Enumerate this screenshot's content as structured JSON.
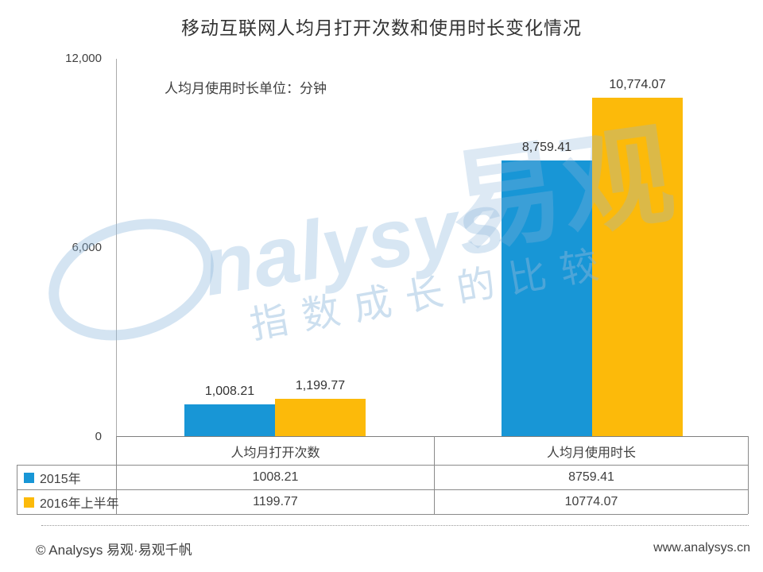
{
  "title": "移动互联网人均月打开次数和使用时长变化情况",
  "chart_data": {
    "type": "bar",
    "title": "移动互联网人均月打开次数和使用时长变化情况",
    "unit_note": "人均月使用时长单位：分钟",
    "categories": [
      "人均月打开次数",
      "人均月使用时长"
    ],
    "series": [
      {
        "name": "2015年",
        "color": "#1896D6",
        "values": [
          1008.21,
          8759.41
        ],
        "labels": [
          "1,008.21",
          "8,759.41"
        ]
      },
      {
        "name": "2016年上半年",
        "color": "#FCBA0A",
        "values": [
          1199.77,
          10774.07
        ],
        "labels": [
          "1,199.77",
          "10,774.07"
        ]
      }
    ],
    "ylim": [
      0,
      12000
    ],
    "yticks": [
      "12,000",
      "6,000",
      "0"
    ],
    "grid": false,
    "legend_position": "table-left-column"
  },
  "table": {
    "headers": [
      "人均月打开次数",
      "人均月使用时长"
    ],
    "rows": [
      {
        "legend": "2015年",
        "swatch": "#1896D6",
        "values": [
          "1008.21",
          "8759.41"
        ]
      },
      {
        "legend": "2016年上半年",
        "swatch": "#FCBA0A",
        "values": [
          "1199.77",
          "10774.07"
        ]
      }
    ]
  },
  "watermark": {
    "logo_latin": "nalysys",
    "logo_cn": "易观",
    "slogan": "指数成长的比较",
    "color": "#8db7dc"
  },
  "footer": {
    "left": "© Analysys 易观·易观千帆",
    "right": "www.analysys.cn"
  }
}
